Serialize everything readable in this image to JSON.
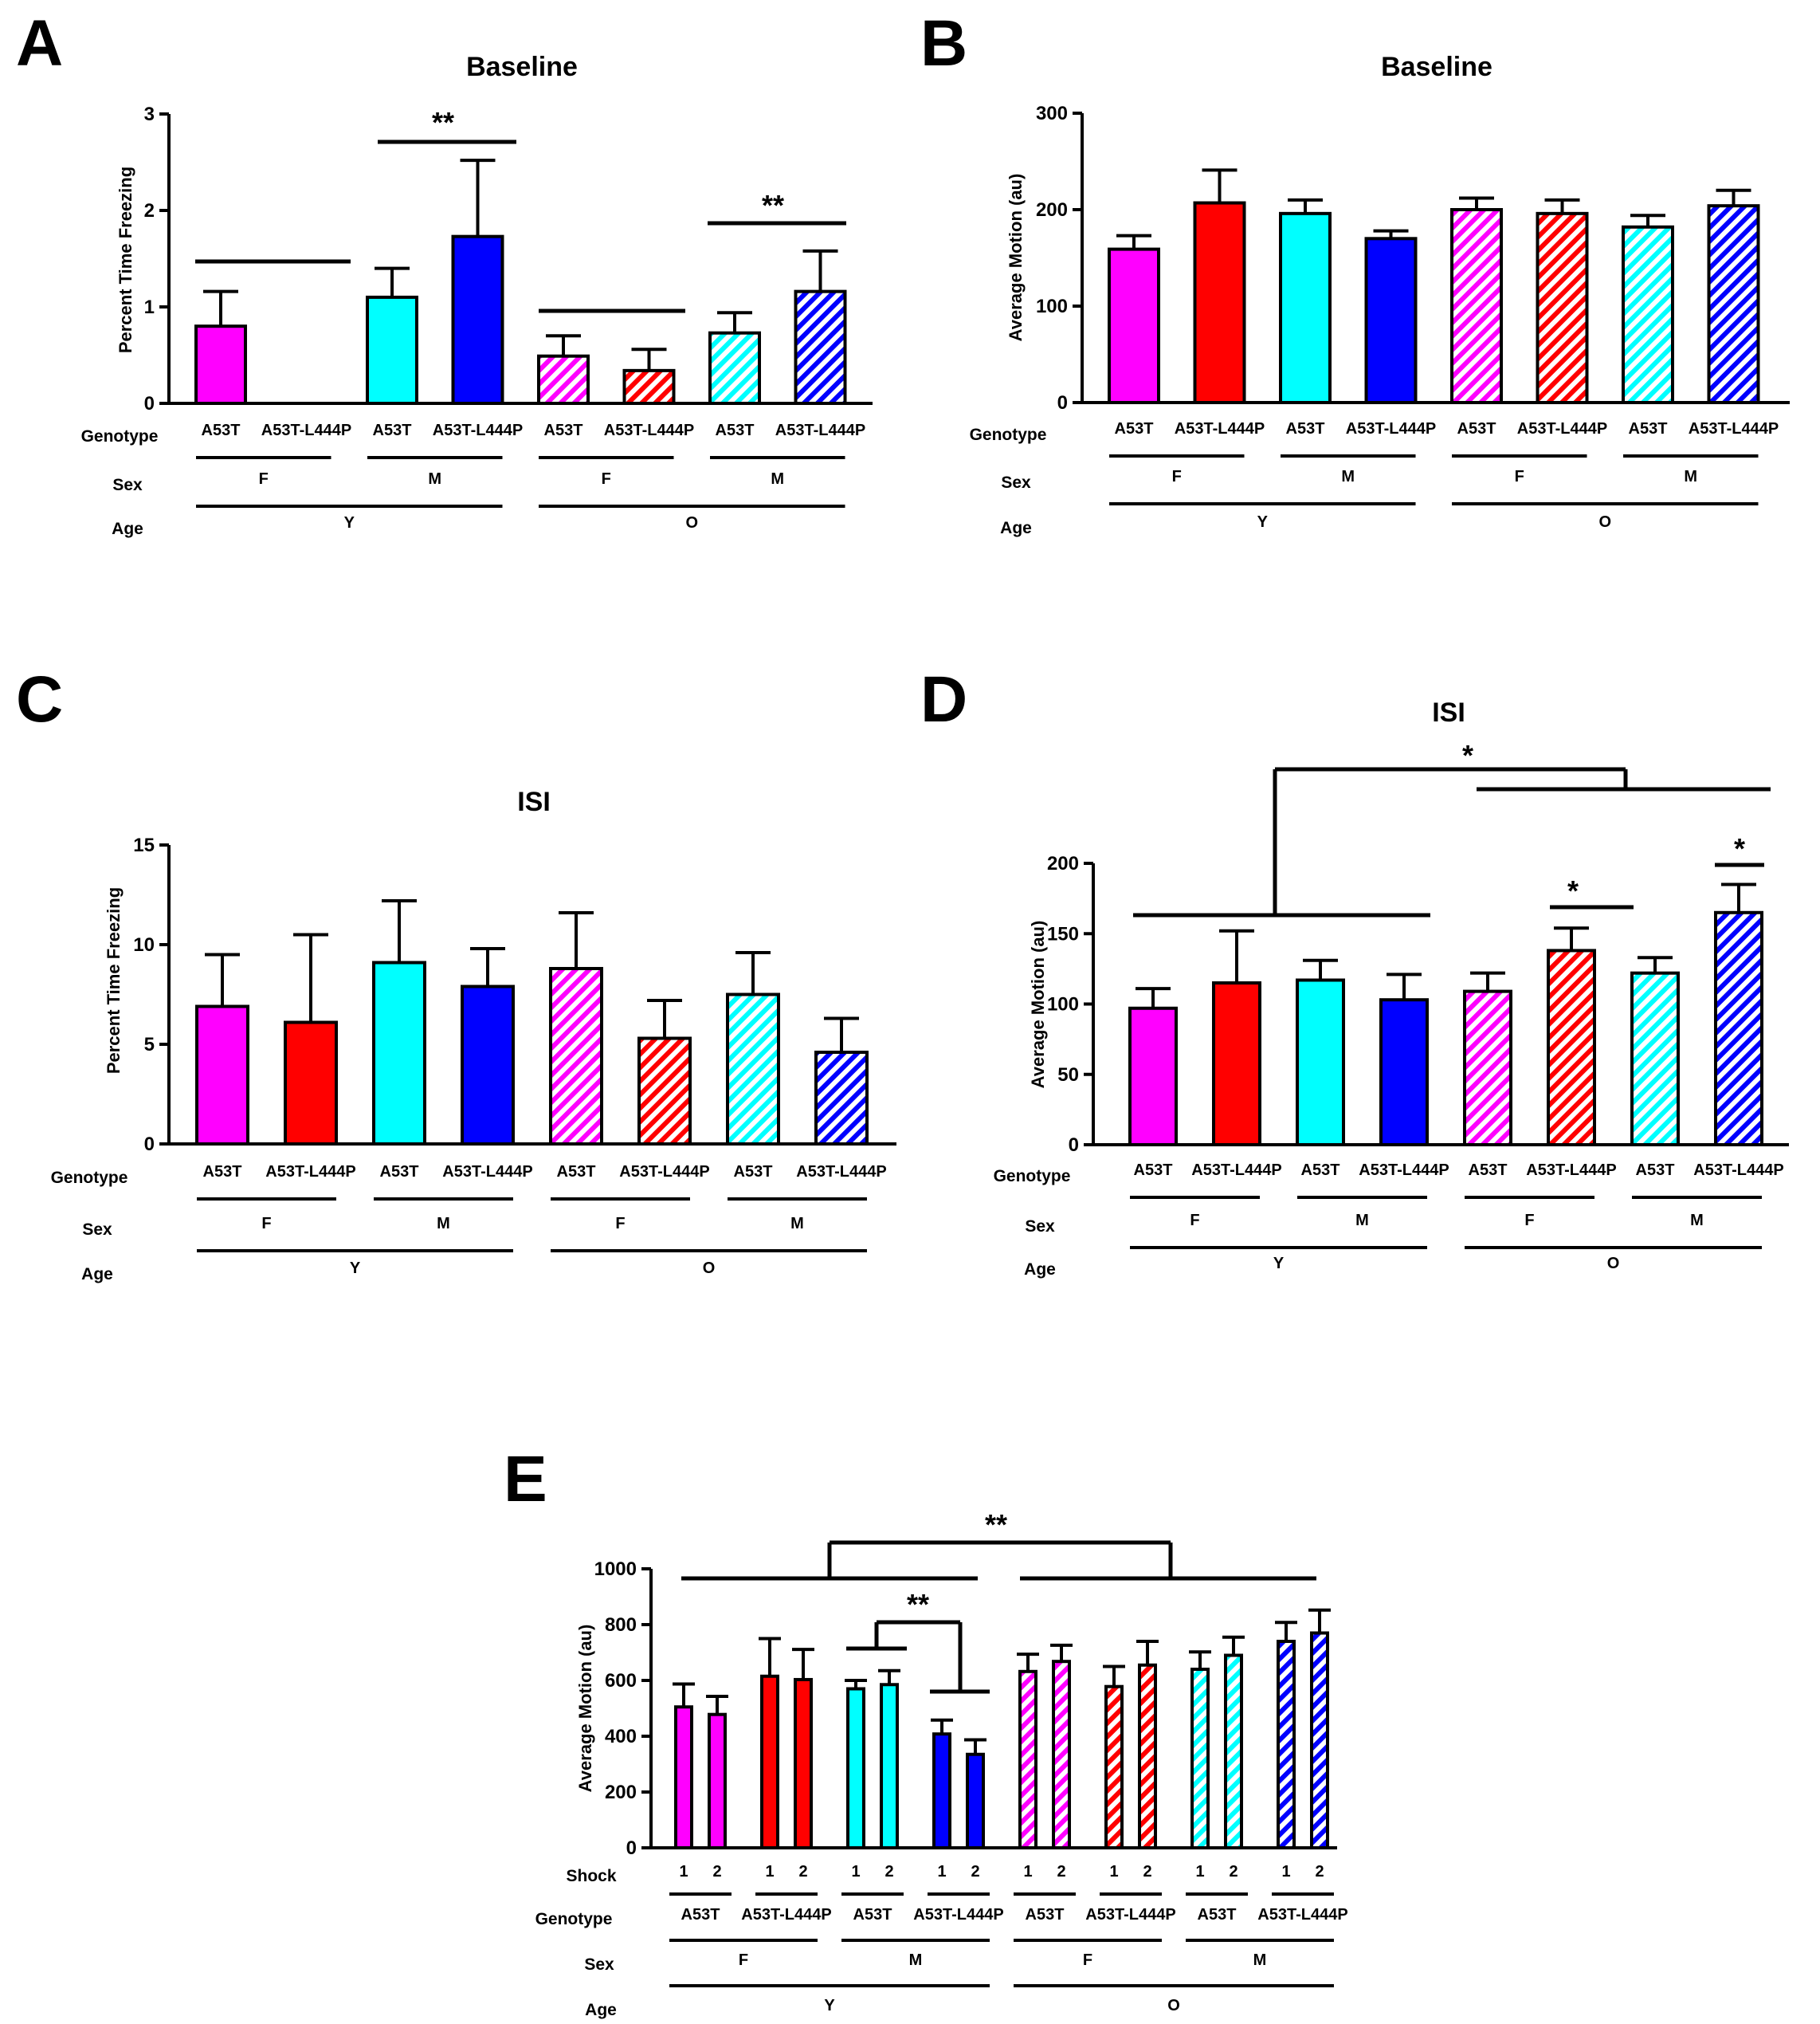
{
  "colors": {
    "F_A53T": "#ff00ff",
    "F_A53T-L444P": "#ff0000",
    "M_A53T": "#00ffff",
    "M_A53T-L444P": "#0000ff",
    "axis": "#000000"
  },
  "chart_data": [
    {
      "panel": "A",
      "type": "bar",
      "title": "Baseline",
      "ylabel": "Percent Time  Freezing",
      "ylim": [
        0,
        3
      ],
      "yticks": [
        0,
        1,
        2,
        3
      ],
      "genotypes": [
        "A53T",
        "A53T-L444P",
        "A53T",
        "A53T-L444P",
        "A53T",
        "A53T-L444P",
        "A53T",
        "A53T-L444P"
      ],
      "sex": [
        "F",
        "F",
        "M",
        "M",
        "F",
        "F",
        "M",
        "M"
      ],
      "age": [
        "Y",
        "Y",
        "Y",
        "Y",
        "O",
        "O",
        "O",
        "O"
      ],
      "values": [
        0.8,
        0.0,
        1.1,
        1.73,
        0.49,
        0.34,
        0.73,
        1.16
      ],
      "errors": [
        0.36,
        0.0,
        0.3,
        0.79,
        0.21,
        0.22,
        0.21,
        0.42
      ],
      "row_labels": [
        "Genotype",
        "Sex",
        "Age"
      ],
      "sex_labels": [
        "F",
        "M",
        "F",
        "M"
      ],
      "age_labels": [
        "Y",
        "O"
      ],
      "annotations": [
        "**",
        "**"
      ]
    },
    {
      "panel": "B",
      "type": "bar",
      "title": "Baseline",
      "ylabel": "Average Motion (au)",
      "ylim": [
        0,
        300
      ],
      "yticks": [
        0,
        100,
        200,
        300
      ],
      "genotypes": [
        "A53T",
        "A53T-L444P",
        "A53T",
        "A53T-L444P",
        "A53T",
        "A53T-L444P",
        "A53T",
        "A53T-L444P"
      ],
      "sex": [
        "F",
        "F",
        "M",
        "M",
        "F",
        "F",
        "M",
        "M"
      ],
      "age": [
        "Y",
        "Y",
        "Y",
        "Y",
        "O",
        "O",
        "O",
        "O"
      ],
      "values": [
        159,
        207,
        196,
        170,
        200,
        196,
        182,
        204
      ],
      "errors": [
        14,
        34,
        14,
        8,
        12,
        14,
        12,
        16
      ],
      "row_labels": [
        "Genotype",
        "Sex",
        "Age"
      ],
      "sex_labels": [
        "F",
        "M",
        "F",
        "M"
      ],
      "age_labels": [
        "Y",
        "O"
      ],
      "annotations": []
    },
    {
      "panel": "C",
      "type": "bar",
      "title": "ISI",
      "ylabel": "Percent Time  Freezing",
      "ylim": [
        0,
        15
      ],
      "yticks": [
        0,
        5,
        10,
        15
      ],
      "genotypes": [
        "A53T",
        "A53T-L444P",
        "A53T",
        "A53T-L444P",
        "A53T",
        "A53T-L444P",
        "A53T",
        "A53T-L444P"
      ],
      "sex": [
        "F",
        "F",
        "M",
        "M",
        "F",
        "F",
        "M",
        "M"
      ],
      "age": [
        "Y",
        "Y",
        "Y",
        "Y",
        "O",
        "O",
        "O",
        "O"
      ],
      "values": [
        6.9,
        6.1,
        9.1,
        7.9,
        8.8,
        5.3,
        7.5,
        4.6
      ],
      "errors": [
        2.6,
        4.4,
        3.1,
        1.9,
        2.8,
        1.9,
        2.1,
        1.7
      ],
      "row_labels": [
        "Genotype",
        "Sex",
        "Age"
      ],
      "sex_labels": [
        "F",
        "M",
        "F",
        "M"
      ],
      "age_labels": [
        "Y",
        "O"
      ],
      "annotations": []
    },
    {
      "panel": "D",
      "type": "bar",
      "title": "ISI",
      "ylabel": "Average Motion (au)",
      "ylim": [
        0,
        200
      ],
      "yticks": [
        0,
        50,
        100,
        150,
        200
      ],
      "genotypes": [
        "A53T",
        "A53T-L444P",
        "A53T",
        "A53T-L444P",
        "A53T",
        "A53T-L444P",
        "A53T",
        "A53T-L444P"
      ],
      "sex": [
        "F",
        "F",
        "M",
        "M",
        "F",
        "F",
        "M",
        "M"
      ],
      "age": [
        "Y",
        "Y",
        "Y",
        "Y",
        "O",
        "O",
        "O",
        "O"
      ],
      "values": [
        97,
        115,
        117,
        103,
        109,
        138,
        122,
        165
      ],
      "errors": [
        14,
        37,
        14,
        18,
        13,
        16,
        11,
        20
      ],
      "row_labels": [
        "Genotype",
        "Sex",
        "Age"
      ],
      "sex_labels": [
        "F",
        "M",
        "F",
        "M"
      ],
      "age_labels": [
        "Y",
        "O"
      ],
      "annotations": [
        "*",
        "*",
        "*"
      ]
    },
    {
      "panel": "E",
      "type": "bar",
      "title": "",
      "ylabel": "Average Motion (au)",
      "ylim": [
        0,
        1000
      ],
      "yticks": [
        0,
        200,
        400,
        600,
        800,
        1000
      ],
      "shock": [
        "1",
        "2",
        "1",
        "2",
        "1",
        "2",
        "1",
        "2",
        "1",
        "2",
        "1",
        "2",
        "1",
        "2",
        "1",
        "2"
      ],
      "genotypes": [
        "A53T",
        "A53T-L444P",
        "A53T",
        "A53T-L444P",
        "A53T",
        "A53T-L444P",
        "A53T",
        "A53T-L444P"
      ],
      "sex_labels": [
        "F",
        "M",
        "F",
        "M"
      ],
      "age_labels": [
        "Y",
        "O"
      ],
      "values": [
        505,
        478,
        615,
        603,
        570,
        585,
        408,
        335,
        632,
        668,
        578,
        655,
        640,
        690,
        740,
        770
      ],
      "errors": [
        82,
        65,
        135,
        108,
        30,
        50,
        50,
        52,
        62,
        58,
        72,
        85,
        62,
        65,
        68,
        82
      ],
      "row_labels": [
        "Shock",
        "Genotype",
        "Sex",
        "Age"
      ],
      "annotations": [
        "**",
        "**"
      ]
    }
  ]
}
